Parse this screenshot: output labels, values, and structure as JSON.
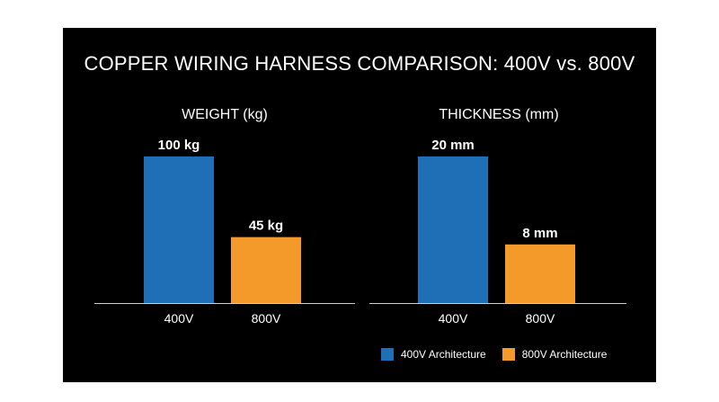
{
  "title": "COPPER WIRING HARNESS COMPARISON: 400V vs. 800V",
  "colors": {
    "series_400v": "#1f6fb6",
    "series_800v": "#f39a2a",
    "axis": "#cfcfcf",
    "text": "#ffffff"
  },
  "legend": {
    "items": [
      {
        "label": "400V Architecture",
        "color": "#1f6fb6"
      },
      {
        "label": "800V Architecture",
        "color": "#f39a2a"
      }
    ]
  },
  "chart_data": [
    {
      "type": "bar",
      "title": "WEIGHT (kg)",
      "categories": [
        "400V",
        "800V"
      ],
      "values": [
        100,
        45
      ],
      "data_labels": [
        "100 kg",
        "45 kg"
      ],
      "ylim": [
        0,
        100
      ],
      "grid": false
    },
    {
      "type": "bar",
      "title": "THICKNESS (mm)",
      "categories": [
        "400V",
        "800V"
      ],
      "values": [
        20,
        8
      ],
      "data_labels": [
        "20 mm",
        "8 mm"
      ],
      "ylim": [
        0,
        20
      ],
      "grid": false
    }
  ]
}
